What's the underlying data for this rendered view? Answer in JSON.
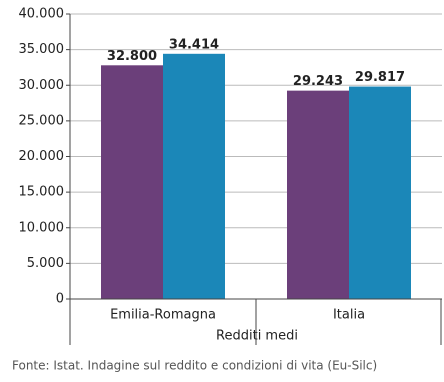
{
  "chart_data": {
    "type": "bar",
    "categories": [
      "Emilia-Romagna",
      "Italia"
    ],
    "x_label": "Redditi medi",
    "series": [
      {
        "color": "#6b3f7a",
        "values": [
          32800,
          29243
        ],
        "value_labels": [
          "32.800",
          "29.243"
        ]
      },
      {
        "color": "#1b87b8",
        "values": [
          34414,
          29817
        ],
        "value_labels": [
          "34.414",
          "29.817"
        ]
      }
    ],
    "ylim": [
      0,
      40000
    ],
    "yticks": [
      0,
      {
        "value": 5000,
        "label": "5.000"
      },
      {
        "value": 10000,
        "label": "10.000"
      },
      {
        "value": 15000,
        "label": "15.000"
      },
      {
        "value": 20000,
        "label": "20.000"
      },
      {
        "value": 25000,
        "label": "25.000"
      },
      {
        "value": 30000,
        "label": "30.000"
      },
      {
        "value": 35000,
        "label": "35.000"
      },
      {
        "value": 40000,
        "label": "40.000"
      }
    ],
    "grid": true,
    "source": "Fonte: Istat. Indagine sul reddito e condizioni di vita (Eu-Silc)"
  }
}
